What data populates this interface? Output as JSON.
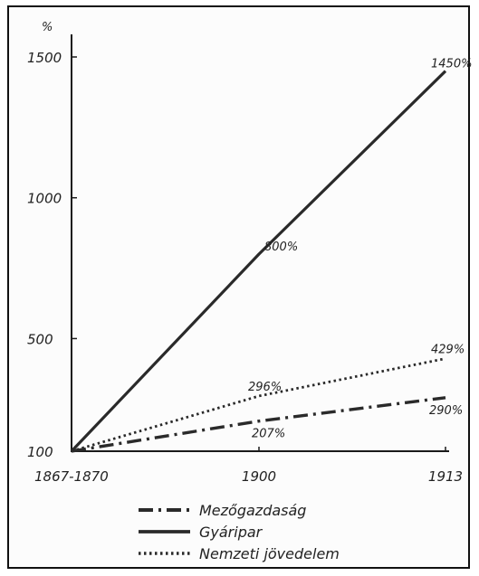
{
  "chart_data": {
    "type": "line",
    "title": "",
    "xlabel": "",
    "ylabel": "%",
    "categories": [
      "1867-1870",
      "1900",
      "1913"
    ],
    "y_ticks": [
      "100",
      "500",
      "1000",
      "1500"
    ],
    "y_tick_values": [
      100,
      500,
      1000,
      1500
    ],
    "ylim": [
      100,
      1500
    ],
    "grid": false,
    "legend_position": "bottom-left",
    "series": [
      {
        "name": "Mezőgazdaság",
        "values": [
          100,
          207,
          290
        ],
        "labels": [
          "",
          "207%",
          "290%"
        ],
        "style": "dashdot",
        "color": "#2a2a2a"
      },
      {
        "name": "Gyáripar",
        "values": [
          100,
          800,
          1450
        ],
        "labels": [
          "",
          "800%",
          "1450%"
        ],
        "style": "solid",
        "color": "#2a2a2a"
      },
      {
        "name": "Nemzeti jövedelem",
        "values": [
          100,
          296,
          429
        ],
        "labels": [
          "",
          "296%",
          "429%"
        ],
        "style": "dotted",
        "color": "#2a2a2a"
      }
    ]
  }
}
